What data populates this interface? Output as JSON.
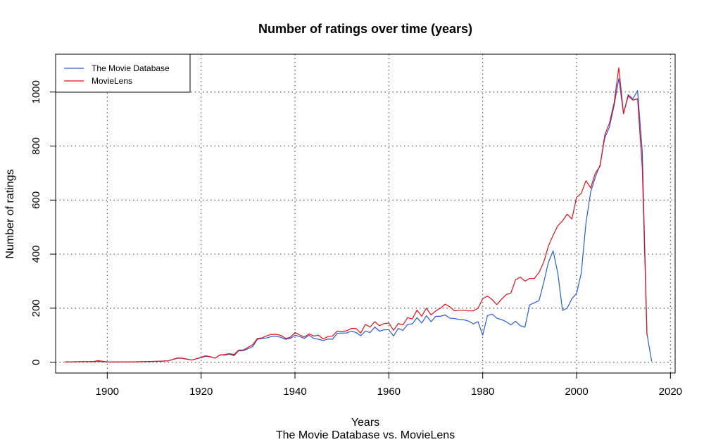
{
  "chart_data": {
    "type": "line",
    "title": "Number of ratings over time (years)",
    "xlabel": "Years",
    "subtitle": "The Movie Database vs. MovieLens",
    "ylabel": "Number of ratings",
    "xlim": [
      1889,
      2021
    ],
    "ylim": [
      -40,
      1140
    ],
    "xticks": [
      1900,
      1920,
      1940,
      1960,
      1980,
      2000,
      2020
    ],
    "yticks": [
      0,
      200,
      400,
      600,
      800,
      1000
    ],
    "grid": true,
    "legend_position": "top-left",
    "series": [
      {
        "name": "The Movie Database",
        "color": "#2a5bd7",
        "points": [
          [
            1891,
            1
          ],
          [
            1895,
            2
          ],
          [
            1898,
            3
          ],
          [
            1900,
            1
          ],
          [
            1905,
            1
          ],
          [
            1910,
            3
          ],
          [
            1913,
            5
          ],
          [
            1915,
            15
          ],
          [
            1916,
            14
          ],
          [
            1918,
            8
          ],
          [
            1920,
            17
          ],
          [
            1921,
            22
          ],
          [
            1922,
            20
          ],
          [
            1923,
            15
          ],
          [
            1924,
            27
          ],
          [
            1925,
            26
          ],
          [
            1926,
            30
          ],
          [
            1927,
            24
          ],
          [
            1928,
            42
          ],
          [
            1929,
            43
          ],
          [
            1930,
            50
          ],
          [
            1931,
            58
          ],
          [
            1932,
            85
          ],
          [
            1933,
            88
          ],
          [
            1934,
            90
          ],
          [
            1935,
            95
          ],
          [
            1936,
            96
          ],
          [
            1937,
            92
          ],
          [
            1938,
            85
          ],
          [
            1939,
            88
          ],
          [
            1940,
            100
          ],
          [
            1941,
            95
          ],
          [
            1942,
            88
          ],
          [
            1943,
            100
          ],
          [
            1944,
            88
          ],
          [
            1945,
            85
          ],
          [
            1946,
            80
          ],
          [
            1947,
            86
          ],
          [
            1948,
            85
          ],
          [
            1949,
            107
          ],
          [
            1950,
            108
          ],
          [
            1951,
            108
          ],
          [
            1952,
            115
          ],
          [
            1953,
            110
          ],
          [
            1954,
            98
          ],
          [
            1955,
            115
          ],
          [
            1956,
            110
          ],
          [
            1957,
            130
          ],
          [
            1958,
            115
          ],
          [
            1959,
            120
          ],
          [
            1960,
            120
          ],
          [
            1961,
            97
          ],
          [
            1962,
            125
          ],
          [
            1963,
            118
          ],
          [
            1964,
            140
          ],
          [
            1965,
            142
          ],
          [
            1966,
            165
          ],
          [
            1967,
            145
          ],
          [
            1968,
            172
          ],
          [
            1969,
            150
          ],
          [
            1970,
            170
          ],
          [
            1971,
            170
          ],
          [
            1972,
            175
          ],
          [
            1973,
            163
          ],
          [
            1974,
            162
          ],
          [
            1975,
            158
          ],
          [
            1976,
            157
          ],
          [
            1977,
            152
          ],
          [
            1978,
            142
          ],
          [
            1979,
            150
          ],
          [
            1980,
            100
          ],
          [
            1981,
            172
          ],
          [
            1982,
            178
          ],
          [
            1983,
            163
          ],
          [
            1984,
            158
          ],
          [
            1985,
            150
          ],
          [
            1986,
            138
          ],
          [
            1987,
            152
          ],
          [
            1988,
            135
          ],
          [
            1989,
            130
          ],
          [
            1990,
            212
          ],
          [
            1991,
            220
          ],
          [
            1992,
            228
          ],
          [
            1993,
            295
          ],
          [
            1994,
            370
          ],
          [
            1995,
            412
          ],
          [
            1996,
            330
          ],
          [
            1997,
            192
          ],
          [
            1998,
            200
          ],
          [
            1999,
            235
          ],
          [
            2000,
            255
          ],
          [
            2001,
            330
          ],
          [
            2002,
            515
          ],
          [
            2003,
            630
          ],
          [
            2004,
            685
          ],
          [
            2005,
            730
          ],
          [
            2006,
            830
          ],
          [
            2007,
            870
          ],
          [
            2008,
            950
          ],
          [
            2009,
            1050
          ],
          [
            2010,
            920
          ],
          [
            2011,
            990
          ],
          [
            2012,
            975
          ],
          [
            2013,
            1005
          ],
          [
            2014,
            780
          ],
          [
            2015,
            105
          ],
          [
            2016,
            3
          ]
        ]
      },
      {
        "name": "MovieLens",
        "color": "#e0101a",
        "points": [
          [
            1891,
            1
          ],
          [
            1895,
            2
          ],
          [
            1897,
            2
          ],
          [
            1898,
            6
          ],
          [
            1900,
            1
          ],
          [
            1905,
            1
          ],
          [
            1910,
            3
          ],
          [
            1913,
            5
          ],
          [
            1915,
            16
          ],
          [
            1916,
            15
          ],
          [
            1918,
            8
          ],
          [
            1920,
            18
          ],
          [
            1921,
            24
          ],
          [
            1922,
            20
          ],
          [
            1923,
            15
          ],
          [
            1924,
            27
          ],
          [
            1925,
            28
          ],
          [
            1926,
            32
          ],
          [
            1927,
            28
          ],
          [
            1928,
            45
          ],
          [
            1929,
            45
          ],
          [
            1930,
            55
          ],
          [
            1931,
            65
          ],
          [
            1932,
            88
          ],
          [
            1933,
            90
          ],
          [
            1934,
            98
          ],
          [
            1935,
            103
          ],
          [
            1936,
            103
          ],
          [
            1937,
            99
          ],
          [
            1938,
            88
          ],
          [
            1939,
            92
          ],
          [
            1940,
            110
          ],
          [
            1941,
            101
          ],
          [
            1942,
            93
          ],
          [
            1943,
            105
          ],
          [
            1944,
            97
          ],
          [
            1945,
            100
          ],
          [
            1946,
            86
          ],
          [
            1947,
            95
          ],
          [
            1948,
            97
          ],
          [
            1949,
            115
          ],
          [
            1950,
            114
          ],
          [
            1951,
            116
          ],
          [
            1952,
            125
          ],
          [
            1953,
            125
          ],
          [
            1954,
            108
          ],
          [
            1955,
            140
          ],
          [
            1956,
            130
          ],
          [
            1957,
            150
          ],
          [
            1958,
            135
          ],
          [
            1959,
            143
          ],
          [
            1960,
            145
          ],
          [
            1961,
            118
          ],
          [
            1962,
            143
          ],
          [
            1963,
            138
          ],
          [
            1964,
            165
          ],
          [
            1965,
            160
          ],
          [
            1966,
            193
          ],
          [
            1967,
            170
          ],
          [
            1968,
            200
          ],
          [
            1969,
            175
          ],
          [
            1970,
            190
          ],
          [
            1971,
            200
          ],
          [
            1972,
            215
          ],
          [
            1973,
            205
          ],
          [
            1974,
            190
          ],
          [
            1975,
            192
          ],
          [
            1976,
            192
          ],
          [
            1977,
            190
          ],
          [
            1978,
            190
          ],
          [
            1979,
            200
          ],
          [
            1980,
            235
          ],
          [
            1981,
            245
          ],
          [
            1982,
            232
          ],
          [
            1983,
            213
          ],
          [
            1984,
            233
          ],
          [
            1985,
            250
          ],
          [
            1986,
            256
          ],
          [
            1987,
            305
          ],
          [
            1988,
            315
          ],
          [
            1989,
            300
          ],
          [
            1990,
            310
          ],
          [
            1991,
            310
          ],
          [
            1992,
            332
          ],
          [
            1993,
            370
          ],
          [
            1994,
            430
          ],
          [
            1995,
            470
          ],
          [
            1996,
            505
          ],
          [
            1997,
            523
          ],
          [
            1998,
            548
          ],
          [
            1999,
            530
          ],
          [
            2000,
            610
          ],
          [
            2001,
            625
          ],
          [
            2002,
            672
          ],
          [
            2003,
            645
          ],
          [
            2004,
            700
          ],
          [
            2005,
            725
          ],
          [
            2006,
            840
          ],
          [
            2007,
            885
          ],
          [
            2008,
            960
          ],
          [
            2009,
            1090
          ],
          [
            2010,
            920
          ],
          [
            2011,
            985
          ],
          [
            2012,
            970
          ],
          [
            2013,
            975
          ],
          [
            2014,
            720
          ],
          [
            2015,
            100
          ]
        ]
      }
    ]
  }
}
